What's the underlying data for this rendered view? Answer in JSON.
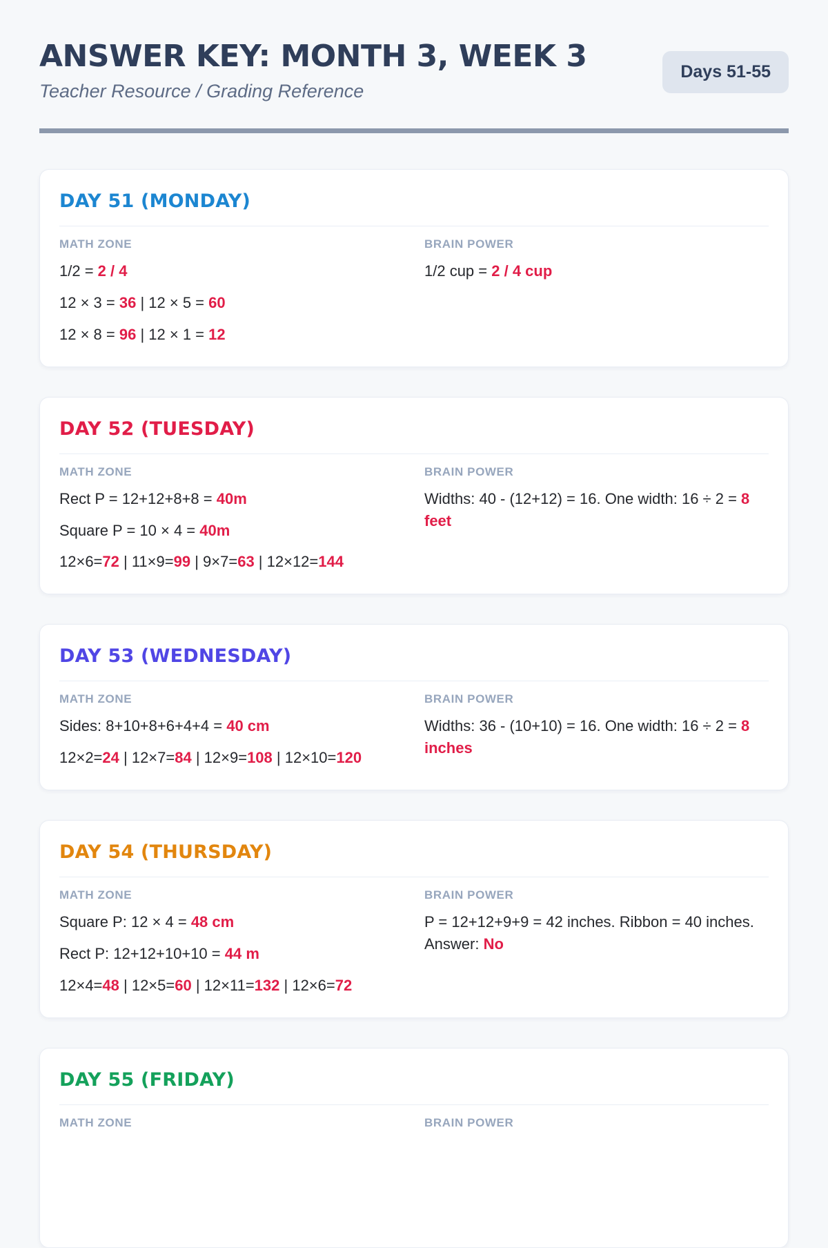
{
  "header": {
    "title": "ANSWER KEY: MONTH 3, WEEK 3",
    "subtitle": "Teacher Resource / Grading Reference",
    "badge": "Days 51-55"
  },
  "columns": {
    "math_label": "MATH ZONE",
    "brain_label": "BRAIN POWER"
  },
  "colors": {
    "page_background": "#f6f8fa",
    "card_background": "#ffffff",
    "card_border": "#e9edf4",
    "header_navy": "#2f3e5a",
    "subtitle_gray": "#5d6b85",
    "badge_bg": "#dfe5ee",
    "rule": "#8c98ac",
    "column_header": "#97a6bd",
    "body_text": "#26282d",
    "accent_red": "#e11d48"
  },
  "days": [
    {
      "number": 51,
      "title": "DAY 51 (MONDAY)",
      "color": "#1c86d1",
      "math_zone": [
        [
          {
            "t": "1/2 = "
          },
          {
            "t": "2 / 4",
            "red": true
          }
        ],
        [
          {
            "t": "12 × 3 = "
          },
          {
            "t": "36",
            "red": true
          },
          {
            "t": " | 12 × 5 = "
          },
          {
            "t": "60",
            "red": true
          }
        ],
        [
          {
            "t": "12 × 8 = "
          },
          {
            "t": "96",
            "red": true
          },
          {
            "t": " | 12 × 1 = "
          },
          {
            "t": "12",
            "red": true
          }
        ]
      ],
      "brain_power": [
        [
          {
            "t": "1/2 cup = "
          },
          {
            "t": "2 / 4 cup",
            "red": true
          }
        ]
      ]
    },
    {
      "number": 52,
      "title": "DAY 52 (TUESDAY)",
      "color": "#e11d48",
      "math_zone": [
        [
          {
            "t": "Rect P = 12+12+8+8 = "
          },
          {
            "t": "40m",
            "red": true
          }
        ],
        [
          {
            "t": "Square P = 10 × 4 = "
          },
          {
            "t": "40m",
            "red": true
          }
        ],
        [
          {
            "t": "12×6="
          },
          {
            "t": "72",
            "red": true
          },
          {
            "t": " | 11×9="
          },
          {
            "t": "99",
            "red": true
          },
          {
            "t": " | 9×7="
          },
          {
            "t": "63",
            "red": true
          },
          {
            "t": " | 12×12="
          },
          {
            "t": "144",
            "red": true
          }
        ]
      ],
      "brain_power": [
        [
          {
            "t": "Widths: 40 - (12+12) = 16. One width: 16 ÷ 2 = "
          },
          {
            "t": "8 feet",
            "red": true
          }
        ]
      ]
    },
    {
      "number": 53,
      "title": "DAY 53 (WEDNESDAY)",
      "color": "#5046e5",
      "math_zone": [
        [
          {
            "t": "Sides: 8+10+8+6+4+4 = "
          },
          {
            "t": "40 cm",
            "red": true
          }
        ],
        [
          {
            "t": "12×2="
          },
          {
            "t": "24",
            "red": true
          },
          {
            "t": " | 12×7="
          },
          {
            "t": "84",
            "red": true
          },
          {
            "t": " | 12×9="
          },
          {
            "t": "108",
            "red": true
          },
          {
            "t": " | 12×10="
          },
          {
            "t": "120",
            "red": true
          }
        ]
      ],
      "brain_power": [
        [
          {
            "t": "Widths: 36 - (10+10) = 16. One width: 16 ÷ 2 = "
          },
          {
            "t": "8 inches",
            "red": true
          }
        ]
      ]
    },
    {
      "number": 54,
      "title": "DAY 54 (THURSDAY)",
      "color": "#e2860e",
      "math_zone": [
        [
          {
            "t": "Square P: 12 × 4 = "
          },
          {
            "t": "48 cm",
            "red": true
          }
        ],
        [
          {
            "t": "Rect P: 12+12+10+10 = "
          },
          {
            "t": "44 m",
            "red": true
          }
        ],
        [
          {
            "t": "12×4="
          },
          {
            "t": "48",
            "red": true
          },
          {
            "t": " | 12×5="
          },
          {
            "t": "60",
            "red": true
          },
          {
            "t": " | 12×11="
          },
          {
            "t": "132",
            "red": true
          },
          {
            "t": " | 12×6="
          },
          {
            "t": "72",
            "red": true
          }
        ]
      ],
      "brain_power": [
        [
          {
            "t": "P = 12+12+9+9 = 42 inches. Ribbon = 40 inches. Answer: "
          },
          {
            "t": "No",
            "red": true
          }
        ]
      ]
    },
    {
      "number": 55,
      "title": "DAY 55 (FRIDAY)",
      "color": "#14a15b",
      "math_zone": [],
      "brain_power": []
    }
  ]
}
